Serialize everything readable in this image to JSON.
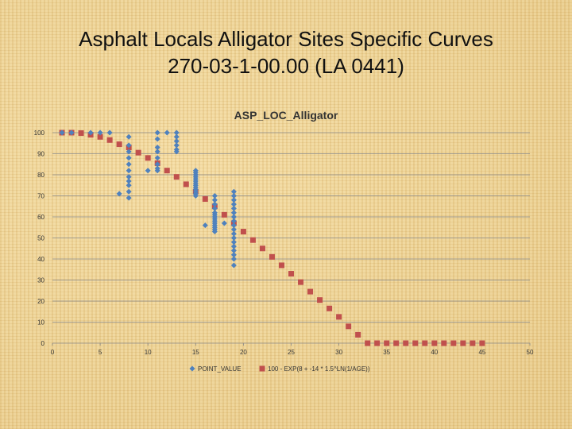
{
  "slide": {
    "title_line1": "Asphalt Locals Alligator Sites Specific Curves",
    "title_line2": "270-03-1-00.00 (LA 0441)"
  },
  "chart_data": {
    "type": "scatter",
    "title": "ASP_LOC_Alligator",
    "xlabel": "",
    "ylabel": "",
    "xlim": [
      0,
      50
    ],
    "ylim": [
      0,
      100
    ],
    "x_ticks": [
      "0",
      "5",
      "10",
      "15",
      "20",
      "25",
      "30",
      "35",
      "40",
      "45",
      "50"
    ],
    "y_ticks": [
      "0",
      "10",
      "20",
      "30",
      "40",
      "50",
      "60",
      "70",
      "80",
      "90",
      "100"
    ],
    "grid": true,
    "legend_position": "bottom",
    "series": [
      {
        "name": "POINT_VALUE",
        "color": "#4f81bd",
        "marker": "diamond",
        "points": [
          [
            1,
            100
          ],
          [
            2,
            100
          ],
          [
            4,
            100
          ],
          [
            5,
            100
          ],
          [
            6,
            100
          ],
          [
            7,
            71
          ],
          [
            8,
            98
          ],
          [
            8,
            94
          ],
          [
            8,
            91
          ],
          [
            8,
            88
          ],
          [
            8,
            85
          ],
          [
            8,
            82
          ],
          [
            8,
            79
          ],
          [
            8,
            77
          ],
          [
            8,
            75
          ],
          [
            8,
            72
          ],
          [
            8,
            69
          ],
          [
            10,
            82
          ],
          [
            11,
            100
          ],
          [
            11,
            97
          ],
          [
            11,
            93
          ],
          [
            11,
            91
          ],
          [
            11,
            88
          ],
          [
            11,
            85
          ],
          [
            11,
            83
          ],
          [
            11,
            82
          ],
          [
            12,
            100
          ],
          [
            13,
            100
          ],
          [
            13,
            98
          ],
          [
            13,
            96
          ],
          [
            13,
            94
          ],
          [
            13,
            92
          ],
          [
            13,
            91
          ],
          [
            15,
            82
          ],
          [
            15,
            81
          ],
          [
            15,
            80
          ],
          [
            15,
            79
          ],
          [
            15,
            78
          ],
          [
            15,
            77
          ],
          [
            15,
            76
          ],
          [
            15,
            75
          ],
          [
            15,
            74
          ],
          [
            15,
            73
          ],
          [
            15,
            72
          ],
          [
            15,
            71
          ],
          [
            15,
            70
          ],
          [
            16,
            56
          ],
          [
            17,
            70
          ],
          [
            17,
            68
          ],
          [
            17,
            66
          ],
          [
            17,
            64
          ],
          [
            17,
            62
          ],
          [
            17,
            61
          ],
          [
            17,
            60
          ],
          [
            17,
            59
          ],
          [
            17,
            58
          ],
          [
            17,
            57
          ],
          [
            17,
            56
          ],
          [
            17,
            55
          ],
          [
            17,
            54
          ],
          [
            17,
            53
          ],
          [
            18,
            57
          ],
          [
            19,
            72
          ],
          [
            19,
            70
          ],
          [
            19,
            68
          ],
          [
            19,
            66
          ],
          [
            19,
            64
          ],
          [
            19,
            62
          ],
          [
            19,
            60
          ],
          [
            19,
            58
          ],
          [
            19,
            56
          ],
          [
            19,
            54
          ],
          [
            19,
            52
          ],
          [
            19,
            50
          ],
          [
            19,
            48
          ],
          [
            19,
            46
          ],
          [
            19,
            44
          ],
          [
            19,
            42
          ],
          [
            19,
            40
          ],
          [
            19,
            37
          ]
        ]
      },
      {
        "name": "100 - EXP(8 + -14 * 1.5^LN(1/AGE))",
        "color": "#c0504d",
        "marker": "square",
        "points": [
          [
            1,
            100
          ],
          [
            2,
            100
          ],
          [
            3,
            99.8
          ],
          [
            4,
            99
          ],
          [
            5,
            98
          ],
          [
            6,
            96.5
          ],
          [
            7,
            94.5
          ],
          [
            8,
            93
          ],
          [
            9,
            90.5
          ],
          [
            10,
            88
          ],
          [
            11,
            85.5
          ],
          [
            12,
            82
          ],
          [
            13,
            79
          ],
          [
            14,
            75.5
          ],
          [
            15,
            72
          ],
          [
            16,
            68.5
          ],
          [
            17,
            65
          ],
          [
            18,
            61
          ],
          [
            19,
            57
          ],
          [
            20,
            53
          ],
          [
            21,
            49
          ],
          [
            22,
            45
          ],
          [
            23,
            41
          ],
          [
            24,
            37
          ],
          [
            25,
            33
          ],
          [
            26,
            29
          ],
          [
            27,
            24.5
          ],
          [
            28,
            20.5
          ],
          [
            29,
            16.5
          ],
          [
            30,
            12.5
          ],
          [
            31,
            8
          ],
          [
            32,
            4
          ],
          [
            33,
            0
          ],
          [
            34,
            0
          ],
          [
            35,
            0
          ],
          [
            36,
            0
          ],
          [
            37,
            0
          ],
          [
            38,
            0
          ],
          [
            39,
            0
          ],
          [
            40,
            0
          ],
          [
            41,
            0
          ],
          [
            42,
            0
          ],
          [
            43,
            0
          ],
          [
            44,
            0
          ],
          [
            45,
            0
          ]
        ]
      }
    ]
  }
}
